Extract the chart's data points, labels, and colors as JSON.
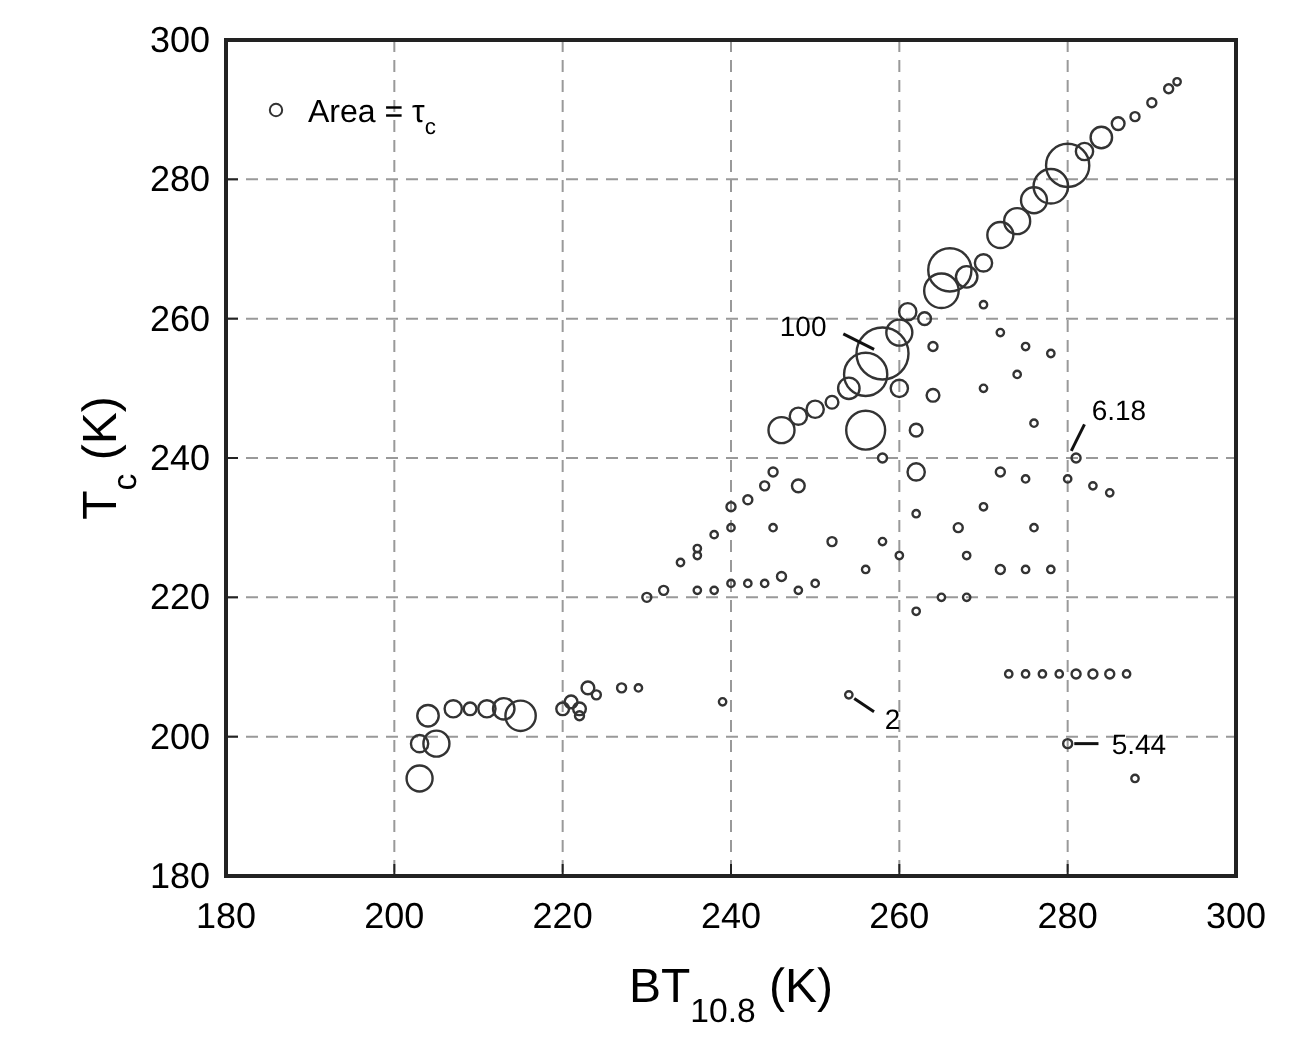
{
  "chart_data": {
    "type": "bubble",
    "xlabel": "BT$_{10.8}$ (K)",
    "ylabel": "T$_{c}$ (K)",
    "xlim": [
      180,
      300
    ],
    "xticks": [
      180,
      200,
      220,
      240,
      260,
      280,
      300
    ],
    "ylim": [
      180,
      300
    ],
    "yticks": [
      180,
      200,
      220,
      240,
      260,
      280,
      300
    ],
    "grid": true,
    "legend": "top left",
    "marker": "circle",
    "series": [
      {
        "name": "Area = τ$_{c}$",
        "color": "#333333",
        "x": [
          203,
          203,
          205,
          204,
          207,
          209,
          211,
          213,
          215,
          220,
          221,
          222,
          223,
          222,
          224,
          227,
          229,
          239,
          230,
          232,
          234,
          236,
          238,
          240,
          242,
          244,
          246,
          248,
          250,
          252,
          254,
          256,
          256,
          258,
          260,
          261,
          263,
          265,
          266,
          268,
          270,
          272,
          274,
          276,
          278,
          280,
          282,
          284,
          286,
          288,
          290,
          292,
          293,
          262,
          260,
          264,
          262,
          258,
          264,
          270,
          272,
          275,
          278,
          270,
          274,
          276,
          272,
          275,
          267,
          270,
          276,
          268,
          272,
          275,
          278,
          281,
          283,
          285,
          280,
          262,
          260,
          262,
          256,
          258,
          252,
          250,
          248,
          246,
          244,
          242,
          240,
          238,
          236,
          248,
          245,
          236,
          245,
          240,
          265,
          268,
          273,
          275,
          277,
          279,
          281,
          283,
          285,
          287,
          280,
          288,
          254
        ],
        "values": [
          194,
          199,
          199,
          203,
          204,
          204,
          204,
          204,
          203,
          204,
          205,
          204,
          207,
          203,
          206,
          207,
          207,
          205,
          220,
          221,
          225,
          227,
          229,
          233,
          234,
          236,
          244,
          246,
          247,
          248,
          250,
          244,
          252,
          255,
          258,
          261,
          260,
          264,
          267,
          266,
          268,
          272,
          274,
          277,
          279,
          282,
          284,
          286,
          288,
          289,
          291,
          293,
          294,
          244,
          250,
          249,
          238,
          240,
          256,
          262,
          258,
          256,
          255,
          250,
          252,
          245,
          238,
          237,
          230,
          233,
          230,
          226,
          224,
          224,
          224,
          240,
          236,
          235,
          237,
          232,
          226,
          218,
          224,
          228,
          228,
          222,
          221,
          223,
          222,
          222,
          222,
          221,
          221,
          236,
          238,
          226,
          230,
          230,
          220,
          220,
          209,
          209,
          209,
          209,
          209,
          209,
          209,
          209,
          199,
          194,
          206
        ],
        "sizes": [
          0.25,
          0.11,
          0.25,
          0.17,
          0.11,
          0.06,
          0.11,
          0.17,
          0.34,
          0.06,
          0.06,
          0.06,
          0.06,
          0.03,
          0.03,
          0.03,
          0.02,
          0.02,
          0.03,
          0.03,
          0.02,
          0.02,
          0.02,
          0.03,
          0.03,
          0.03,
          0.25,
          0.11,
          0.11,
          0.06,
          0.17,
          0.56,
          0.69,
          1,
          0.25,
          0.11,
          0.06,
          0.44,
          0.69,
          0.17,
          0.11,
          0.25,
          0.25,
          0.25,
          0.44,
          0.69,
          0.11,
          0.17,
          0.06,
          0.03,
          0.03,
          0.03,
          0.02,
          0.06,
          0.11,
          0.06,
          0.11,
          0.03,
          0.03,
          0.02,
          0.02,
          0.02,
          0.02,
          0.02,
          0.02,
          0.02,
          0.03,
          0.02,
          0.03,
          0.02,
          0.02,
          0.02,
          0.03,
          0.02,
          0.02,
          0.03,
          0.02,
          0.02,
          0.02,
          0.02,
          0.02,
          0.02,
          0.02,
          0.02,
          0.03,
          0.02,
          0.02,
          0.03,
          0.02,
          0.02,
          0.02,
          0.02,
          0.02,
          0.06,
          0.03,
          0.02,
          0.02,
          0.02,
          0.02,
          0.02,
          0.02,
          0.02,
          0.02,
          0.02,
          0.03,
          0.03,
          0.03,
          0.02,
          0.03,
          0.02,
          0.02
        ]
      }
    ],
    "annotations": [
      {
        "text": "100",
        "x": 258,
        "y": 255
      },
      {
        "text": "6.18",
        "x": 280,
        "y": 240
      },
      {
        "text": "2",
        "x": 254,
        "y": 206
      },
      {
        "text": "5.44",
        "x": 280,
        "y": 199
      }
    ]
  }
}
